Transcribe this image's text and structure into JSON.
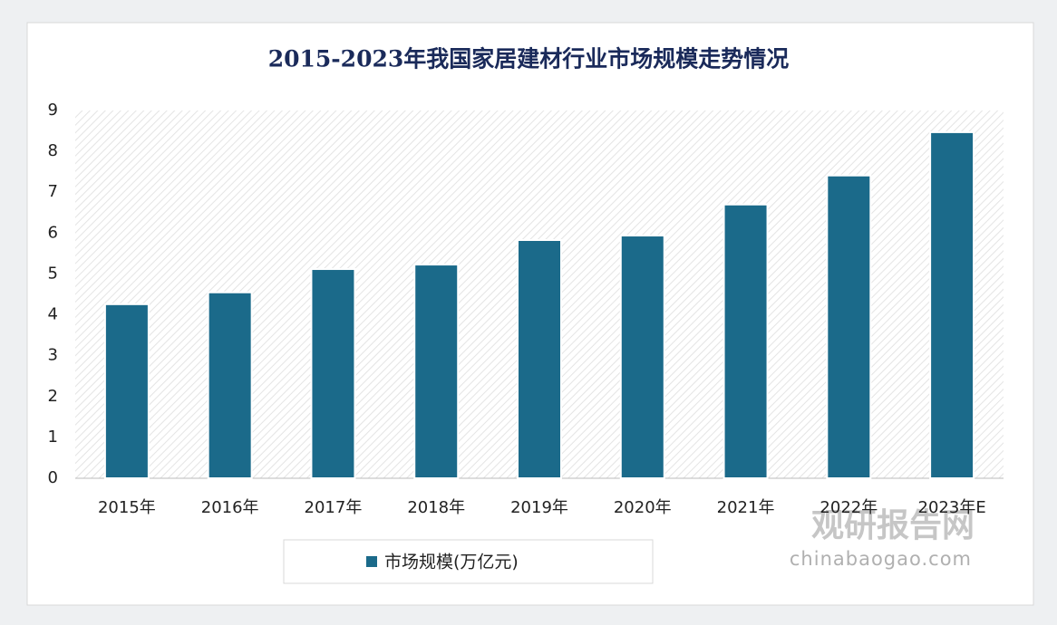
{
  "chart_data": {
    "type": "bar",
    "title": "2015-2023年我国家居建材行业市场规模走势情况",
    "categories": [
      "2015年",
      "2016年",
      "2017年",
      "2018年",
      "2019年",
      "2020年",
      "2021年",
      "2022年",
      "2023年E"
    ],
    "series": [
      {
        "name": "市场规模(万亿元)",
        "color": "#1b6a8a",
        "values": [
          4.26,
          4.55,
          5.12,
          5.23,
          5.83,
          5.94,
          6.7,
          7.41,
          8.47
        ]
      }
    ],
    "ylim": [
      0,
      9
    ],
    "yticks": [
      0,
      1,
      2,
      3,
      4,
      5,
      6,
      7,
      8,
      9
    ],
    "grid": false,
    "legend": "bottom",
    "watermark_brand": "观研报告网",
    "watermark_site": "chinabaogao.com"
  }
}
